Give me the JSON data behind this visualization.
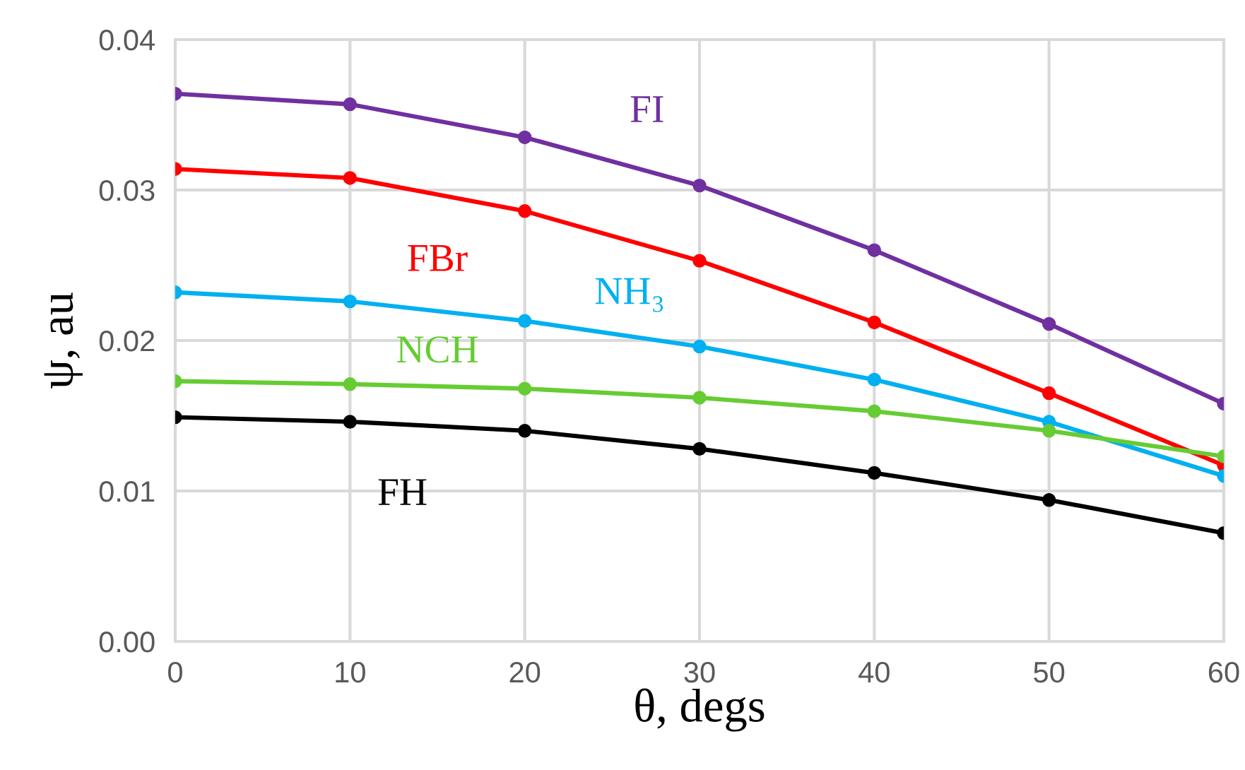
{
  "chart_data": {
    "type": "line",
    "xlabel": "θ, degs",
    "ylabel": "ψ, au",
    "x": [
      0,
      10,
      20,
      30,
      40,
      50,
      60
    ],
    "xlim": [
      0,
      60
    ],
    "xticks": [
      0,
      10,
      20,
      30,
      40,
      50,
      60
    ],
    "ylim": [
      0,
      0.04
    ],
    "yticks": [
      {
        "value": 0,
        "label": "0.00"
      },
      {
        "value": 0.01,
        "label": "0.01"
      },
      {
        "value": 0.02,
        "label": "0.02"
      },
      {
        "value": 0.03,
        "label": "0.03"
      },
      {
        "value": 0.04,
        "label": "0.04"
      }
    ],
    "grid": true,
    "legend": false,
    "marker": "circle",
    "line_style": "solid",
    "series": [
      {
        "name": "FI",
        "color": "#7030a0",
        "values": [
          0.0364,
          0.0357,
          0.0335,
          0.0303,
          0.026,
          0.0211,
          0.0158
        ]
      },
      {
        "name": "FBr",
        "color": "#ff0000",
        "values": [
          0.0314,
          0.0308,
          0.0286,
          0.0253,
          0.0212,
          0.0165,
          0.0117
        ]
      },
      {
        "name": "NH₃",
        "color": "#00b0f0",
        "values": [
          0.0232,
          0.0226,
          0.0213,
          0.0196,
          0.0174,
          0.0146,
          0.011
        ]
      },
      {
        "name": "NCH",
        "color": "#66cc33",
        "values": [
          0.0173,
          0.0171,
          0.0168,
          0.0162,
          0.0153,
          0.014,
          0.0123
        ]
      },
      {
        "name": "FH",
        "color": "#000000",
        "values": [
          0.0149,
          0.0146,
          0.014,
          0.0128,
          0.0112,
          0.0094,
          0.0072
        ]
      }
    ]
  }
}
